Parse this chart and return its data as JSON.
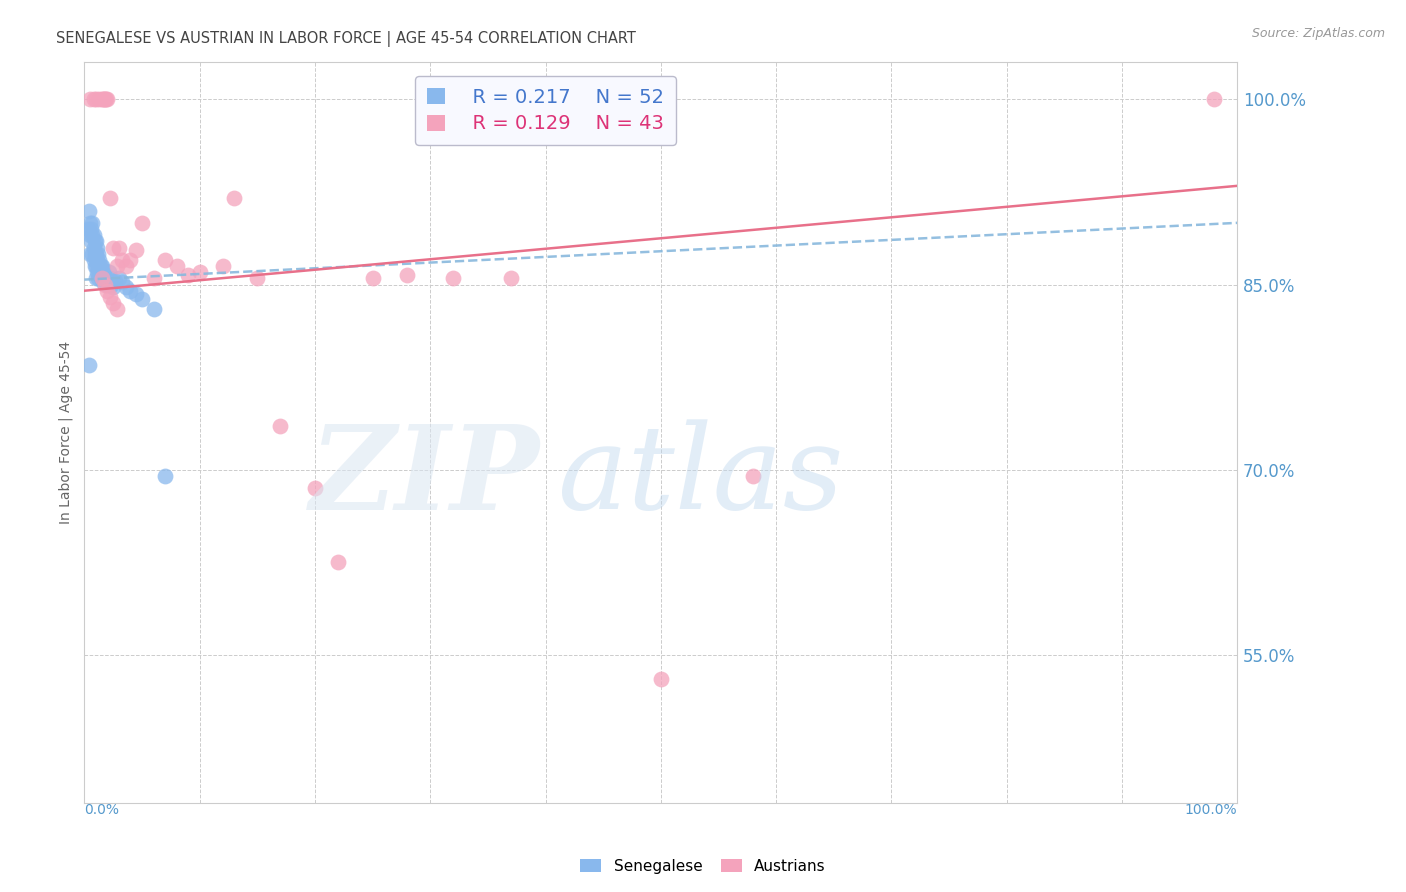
{
  "title": "SENEGALESE VS AUSTRIAN IN LABOR FORCE | AGE 45-54 CORRELATION CHART",
  "source": "Source: ZipAtlas.com",
  "ylabel": "In Labor Force | Age 45-54",
  "xlim": [
    0.0,
    1.0
  ],
  "ylim": [
    0.43,
    1.03
  ],
  "yticks": [
    0.55,
    0.7,
    0.85,
    1.0
  ],
  "ytick_labels": [
    "55.0%",
    "70.0%",
    "85.0%",
    "100.0%"
  ],
  "R_blue": 0.217,
  "N_blue": 52,
  "R_pink": 0.129,
  "N_pink": 43,
  "blue_color": "#89b8ed",
  "pink_color": "#f4a3bc",
  "pink_line_color": "#e8708a",
  "blue_dashed_color": "#88b8dd",
  "background_color": "#ffffff",
  "grid_color": "#cccccc",
  "title_color": "#444444",
  "source_color": "#999999",
  "tick_label_color": "#5599cc",
  "blue_legend_color": "#4477cc",
  "pink_legend_color": "#dd3377",
  "blue_scatter_x": [
    0.003,
    0.004,
    0.005,
    0.005,
    0.005,
    0.006,
    0.006,
    0.007,
    0.007,
    0.007,
    0.008,
    0.008,
    0.008,
    0.009,
    0.009,
    0.009,
    0.01,
    0.01,
    0.01,
    0.01,
    0.011,
    0.011,
    0.011,
    0.012,
    0.012,
    0.012,
    0.013,
    0.013,
    0.014,
    0.014,
    0.015,
    0.015,
    0.016,
    0.016,
    0.017,
    0.018,
    0.019,
    0.02,
    0.021,
    0.022,
    0.023,
    0.025,
    0.027,
    0.03,
    0.033,
    0.036,
    0.04,
    0.045,
    0.05,
    0.06,
    0.004,
    0.07
  ],
  "blue_scatter_y": [
    0.895,
    0.91,
    0.9,
    0.89,
    0.875,
    0.895,
    0.885,
    0.9,
    0.89,
    0.875,
    0.89,
    0.88,
    0.87,
    0.885,
    0.875,
    0.865,
    0.885,
    0.875,
    0.865,
    0.855,
    0.88,
    0.87,
    0.86,
    0.875,
    0.865,
    0.855,
    0.87,
    0.86,
    0.865,
    0.855,
    0.865,
    0.855,
    0.862,
    0.852,
    0.858,
    0.855,
    0.852,
    0.85,
    0.86,
    0.855,
    0.85,
    0.848,
    0.853,
    0.855,
    0.852,
    0.848,
    0.845,
    0.842,
    0.838,
    0.83,
    0.785,
    0.695
  ],
  "pink_scatter_x": [
    0.005,
    0.008,
    0.01,
    0.013,
    0.015,
    0.016,
    0.017,
    0.018,
    0.019,
    0.02,
    0.022,
    0.025,
    0.028,
    0.03,
    0.033,
    0.036,
    0.04,
    0.045,
    0.05,
    0.06,
    0.07,
    0.08,
    0.09,
    0.1,
    0.12,
    0.13,
    0.15,
    0.17,
    0.2,
    0.22,
    0.25,
    0.28,
    0.32,
    0.37,
    0.5,
    0.58,
    0.98,
    0.015,
    0.018,
    0.02,
    0.022,
    0.025,
    0.028
  ],
  "pink_scatter_y": [
    1.0,
    1.0,
    1.0,
    1.0,
    1.0,
    1.0,
    1.0,
    1.0,
    1.0,
    1.0,
    0.92,
    0.88,
    0.865,
    0.88,
    0.87,
    0.865,
    0.87,
    0.878,
    0.9,
    0.855,
    0.87,
    0.865,
    0.858,
    0.86,
    0.865,
    0.92,
    0.855,
    0.735,
    0.685,
    0.625,
    0.855,
    0.858,
    0.855,
    0.855,
    0.53,
    0.695,
    1.0,
    0.855,
    0.85,
    0.845,
    0.84,
    0.835,
    0.83
  ],
  "blue_trend_y": [
    0.854,
    0.9
  ],
  "pink_trend_y": [
    0.845,
    0.93
  ]
}
